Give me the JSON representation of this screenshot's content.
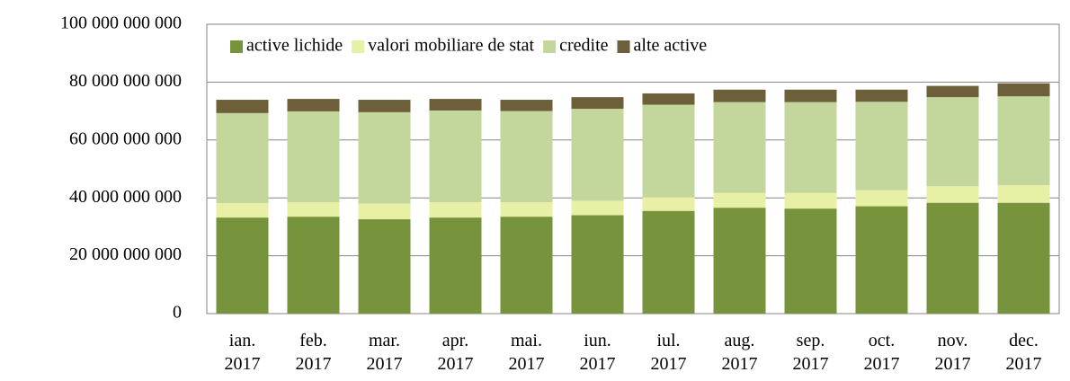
{
  "chart_data": {
    "type": "stacked_bar",
    "categories": [
      "ian. 2017",
      "feb. 2017",
      "mar. 2017",
      "apr. 2017",
      "mai. 2017",
      "iun. 2017",
      "iul. 2017",
      "aug. 2017",
      "sep. 2017",
      "oct. 2017",
      "nov. 2017",
      "dec. 2017"
    ],
    "series": [
      {
        "name": "active lichide",
        "color": "#77933c",
        "values": [
          33200000000,
          33500000000,
          32600000000,
          33200000000,
          33500000000,
          34000000000,
          35500000000,
          36600000000,
          36300000000,
          37100000000,
          38300000000,
          38300000000
        ]
      },
      {
        "name": "valori mobiliare de stat",
        "color": "#e8f0a6",
        "values": [
          5000000000,
          5000000000,
          5400000000,
          5300000000,
          5000000000,
          5000000000,
          4700000000,
          5100000000,
          5400000000,
          5600000000,
          5700000000,
          6100000000
        ]
      },
      {
        "name": "credite",
        "color": "#c3d69b",
        "values": [
          31100000000,
          31400000000,
          31600000000,
          31700000000,
          31500000000,
          31800000000,
          32000000000,
          31400000000,
          31400000000,
          30500000000,
          30800000000,
          30700000000
        ]
      },
      {
        "name": "alte active",
        "color": "#6d5f3a",
        "values": [
          4600000000,
          4300000000,
          4300000000,
          4000000000,
          3900000000,
          4000000000,
          3900000000,
          4300000000,
          4300000000,
          4200000000,
          3900000000,
          4500000000
        ]
      }
    ],
    "ylim": [
      0,
      100000000000
    ],
    "yticks": [
      0,
      {
        "value": 20000000000,
        "label": "20 000 000 000"
      },
      {
        "value": 40000000000,
        "label": "40 000 000 000"
      },
      {
        "value": 60000000000,
        "label": "60 000 000 000"
      },
      {
        "value": 80000000000,
        "label": "80 000 000 000"
      },
      {
        "value": 100000000000,
        "label": "100 000 000 000"
      }
    ],
    "grid": true,
    "legend": "top-left"
  }
}
